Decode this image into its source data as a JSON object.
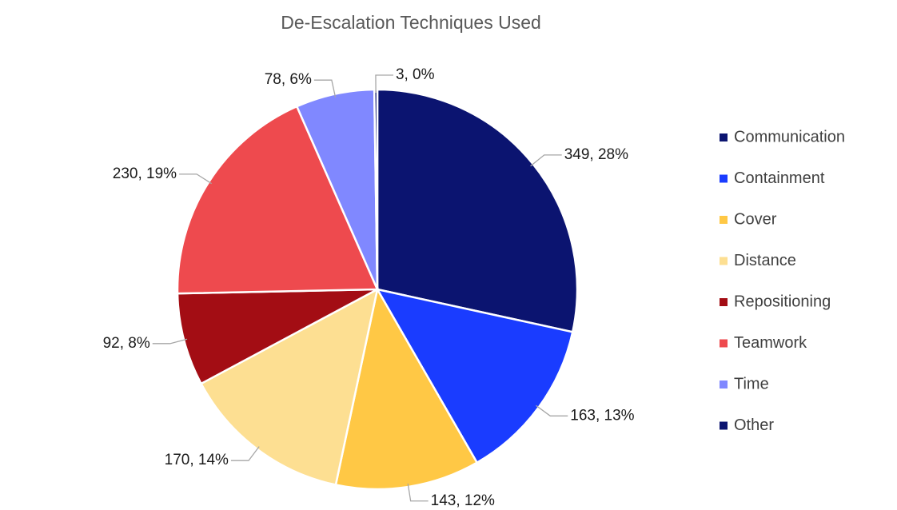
{
  "chart_data": {
    "type": "pie",
    "title": "De-Escalation Techniques Used",
    "categories": [
      "Communication",
      "Containment",
      "Cover",
      "Distance",
      "Repositioning",
      "Teamwork",
      "Time",
      "Other"
    ],
    "values": [
      349,
      163,
      143,
      170,
      92,
      230,
      78,
      3
    ],
    "value_labels": [
      "349, 28%",
      "163, 13%",
      "143, 12%",
      "170, 14%",
      "92, 8%",
      "230, 19%",
      "78, 6%",
      "3, 0%"
    ],
    "colors": [
      "#0b1470",
      "#1a3cff",
      "#ffc845",
      "#fddf92",
      "#a30d14",
      "#ee4a4e",
      "#8088ff",
      "#0b1470"
    ],
    "legend": "right"
  }
}
